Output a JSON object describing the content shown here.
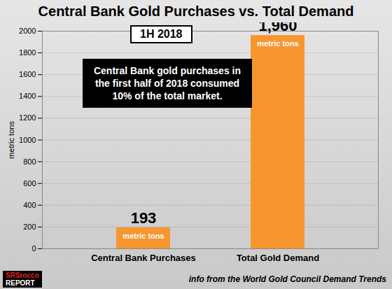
{
  "chart_data": {
    "type": "bar",
    "title": "Central Bank Gold Purchases vs. Total Demand",
    "subtitle": "1H 2018",
    "y_label": "metric tons",
    "categories": [
      "Central Bank Purchases",
      "Total Gold Demand"
    ],
    "values": [
      193,
      1960
    ],
    "value_labels": [
      "193",
      "1,960"
    ],
    "data_labels": true,
    "unit_label": "metric tons",
    "color": "#f7962f",
    "ylim": [
      0,
      2000
    ],
    "yticks": [
      0,
      200,
      400,
      600,
      800,
      1000,
      1200,
      1400,
      1600,
      1800,
      2000
    ],
    "grid": true,
    "annotation": "Central Bank gold purchases in the first half of 2018 consumed 10% of the total market.",
    "source": "info from the World Gold Council Demand Trends",
    "logo": [
      "SRSrocco",
      "REPORT"
    ]
  }
}
